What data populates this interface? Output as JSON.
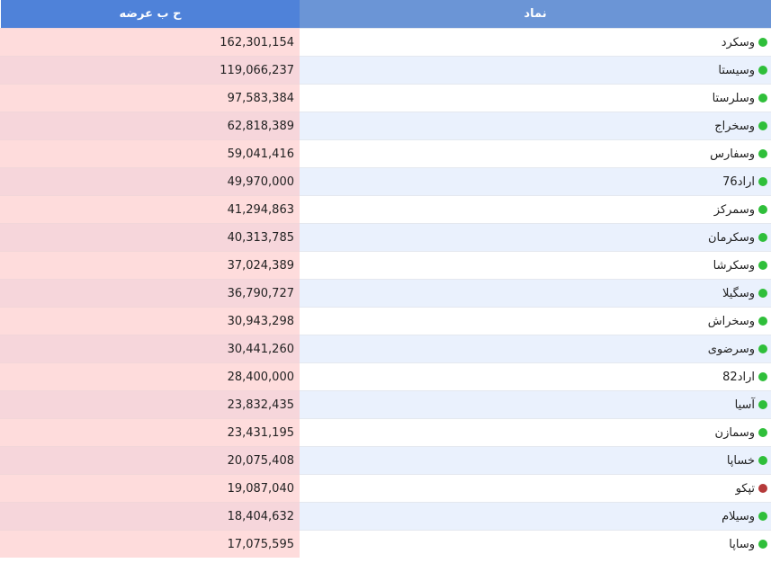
{
  "headers": {
    "symbol": "نماد",
    "volume": "ح ب عرضه"
  },
  "colors": {
    "green": "#2fbf3a",
    "red": "#b53a3a"
  },
  "rows": [
    {
      "symbol": "وسکرد",
      "volume": "162,301,154",
      "status": "green"
    },
    {
      "symbol": "وسیستا",
      "volume": "119,066,237",
      "status": "green"
    },
    {
      "symbol": "وسلرستا",
      "volume": "97,583,384",
      "status": "green"
    },
    {
      "symbol": "وسخراج",
      "volume": "62,818,389",
      "status": "green"
    },
    {
      "symbol": "وسفارس",
      "volume": "59,041,416",
      "status": "green"
    },
    {
      "symbol": "اراد76",
      "volume": "49,970,000",
      "status": "green"
    },
    {
      "symbol": "وسمرکز",
      "volume": "41,294,863",
      "status": "green"
    },
    {
      "symbol": "وسکرمان",
      "volume": "40,313,785",
      "status": "green"
    },
    {
      "symbol": "وسکرشا",
      "volume": "37,024,389",
      "status": "green"
    },
    {
      "symbol": "وسگیلا",
      "volume": "36,790,727",
      "status": "green"
    },
    {
      "symbol": "وسخراش",
      "volume": "30,943,298",
      "status": "green"
    },
    {
      "symbol": "وسرضوی",
      "volume": "30,441,260",
      "status": "green"
    },
    {
      "symbol": "اراد82",
      "volume": "28,400,000",
      "status": "green"
    },
    {
      "symbol": "آسیا",
      "volume": "23,832,435",
      "status": "green"
    },
    {
      "symbol": "وسمازن",
      "volume": "23,431,195",
      "status": "green"
    },
    {
      "symbol": "خساپا",
      "volume": "20,075,408",
      "status": "green"
    },
    {
      "symbol": "تپکو",
      "volume": "19,087,040",
      "status": "red"
    },
    {
      "symbol": "وسیلام",
      "volume": "18,404,632",
      "status": "green"
    },
    {
      "symbol": "وساپا",
      "volume": "17,075,595",
      "status": "green"
    }
  ]
}
